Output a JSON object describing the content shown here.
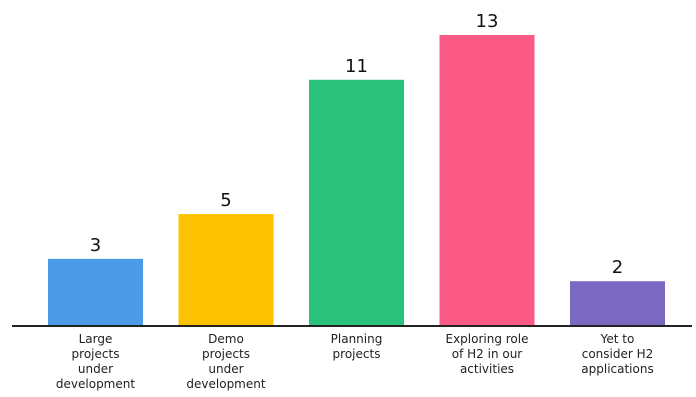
{
  "chart_data": {
    "type": "bar",
    "categories": [
      [
        "Large",
        "projects",
        "under",
        "development"
      ],
      [
        "Demo",
        "projects",
        "under",
        "development"
      ],
      [
        "Planning",
        "projects"
      ],
      [
        "Exploring role",
        "of H2 in our",
        "activities"
      ],
      [
        "Yet to",
        "consider H2",
        "applications"
      ]
    ],
    "values": [
      3,
      5,
      11,
      13,
      2
    ],
    "colors": [
      "#4d9be8",
      "#fcc200",
      "#2ac27d",
      "#fb5a87",
      "#7b68c2"
    ],
    "ylim": [
      0,
      13
    ],
    "grid": false,
    "legend": "none"
  }
}
